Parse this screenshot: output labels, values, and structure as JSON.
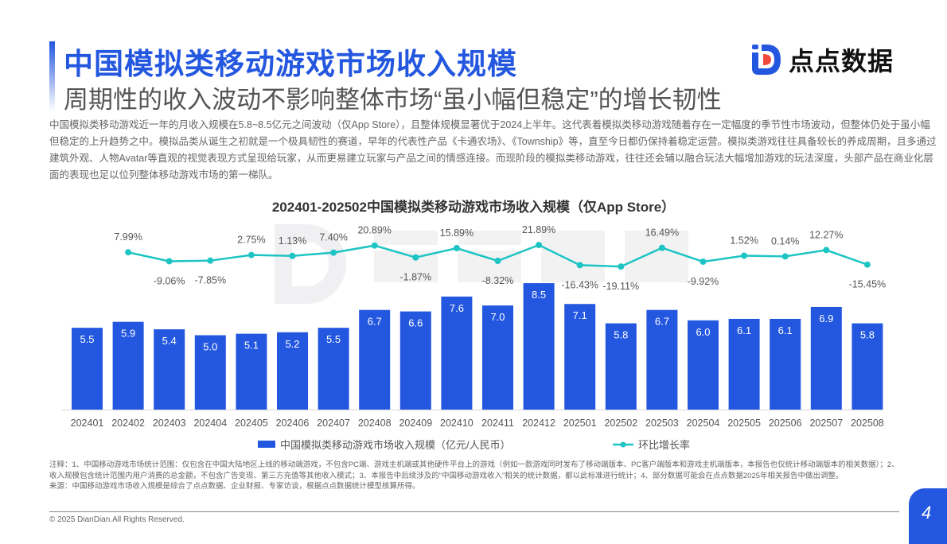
{
  "header": {
    "title": "中国模拟类移动游戏市场收入规模",
    "subtitle": "周期性的收入波动不影响整体市场“虽小幅但稳定”的增长韧性",
    "logo_text": "点点数据"
  },
  "intro": "中国模拟类移动游戏近一年的月收入规模在5.8~8.5亿元之间波动（仅App Store），且整体规模显著优于2024上半年。这代表着模拟类移动游戏随着存在一定幅度的季节性市场波动，但整体仍处于虽小幅但稳定的上升趋势之中。模拟品类从诞生之初就是一个极具韧性的赛道，早年的代表性产品《卡通农场》、《Township》等，直至今日都仍保持着稳定运营。模拟类游戏往往具备较长的养成周期，且多通过建筑外观、人物Avatar等直观的视觉表现方式呈现给玩家，从而更易建立玩家与产品之间的情感连接。而现阶段的模拟类移动游戏，往往还会辅以融合玩法大幅增加游戏的玩法深度，头部产品在商业化层面的表现也足以位列整体移动游戏市场的第一梯队。",
  "chart_data": {
    "type": "bar+line",
    "title": "202401-202502中国模拟类移动游戏市场收入规模（仅App Store）",
    "categories": [
      "202401",
      "202402",
      "202403",
      "202404",
      "202405",
      "202406",
      "202407",
      "202408",
      "202409",
      "202410",
      "202411",
      "202412",
      "202501",
      "202502",
      "202503",
      "202504",
      "202505",
      "202506",
      "202507",
      "202508"
    ],
    "series": [
      {
        "name": "中国模拟类移动游戏市场收入规模（亿元/人民币）",
        "type": "bar",
        "color": "#2457e0",
        "values": [
          5.5,
          5.9,
          5.4,
          5.0,
          5.1,
          5.2,
          5.5,
          6.7,
          6.6,
          7.6,
          7.0,
          8.5,
          7.1,
          5.8,
          6.7,
          6.0,
          6.1,
          6.1,
          6.9,
          5.8
        ]
      },
      {
        "name": "环比增长率",
        "type": "line",
        "color": "#1ec4c4",
        "unit": "%",
        "values": [
          null,
          7.99,
          -9.06,
          -7.85,
          2.75,
          1.13,
          7.4,
          20.89,
          -1.87,
          15.89,
          -8.32,
          21.89,
          -16.43,
          -19.11,
          16.49,
          -9.92,
          1.52,
          0.14,
          12.27,
          -15.45
        ]
      }
    ],
    "legend": "bottom",
    "grid": false
  },
  "notes": {
    "note": "注释：1、中国移动游戏市场统计范围：仅包含在中国大陆地区上线的移动端游戏，不包含PC端、游戏主机端或其他硬件平台上的游戏（例如一款游戏同时发布了移动端版本、PC客户端版本和游戏主机端版本，本报告也仅统计移动端版本的相关数据）；2、收入规模包含统计范围内用户消费的总金额，不包含广告变现、第三方充值等其他收入模式；3、本报告中后续涉及的“中国移动游戏收入”相关的统计数据，都以此标准进行统计；4、部分数据可能会在点点数据2025年相关报告中做出调整。",
    "source": "来源：中国移动游戏市场收入规模是综合了点点数据、企业财报、专家访谈，根据点点数据统计模型核算所得。"
  },
  "footer": {
    "copyright": "© 2025 DianDian.All Rights Reserved.",
    "page": "4"
  }
}
